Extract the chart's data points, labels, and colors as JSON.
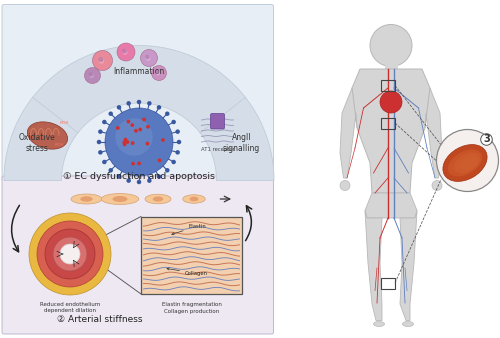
{
  "bg_color": "#ffffff",
  "top_panel_color": "#e8eef5",
  "bottom_panel_color": "#ede8f2",
  "arc_color": "#d5dde8",
  "arc_edge": "#c0ccd8",
  "section_labels": [
    "Oxidative\nstress",
    "Inflammation",
    "AngII\nsignalling"
  ],
  "label1": "① EC dysfunction and apoptosis",
  "label2": "② Arterial stiffness",
  "label3": "3",
  "sub_label1": "Reduced endothelium\ndependent dilation",
  "sub_label2": "Elastin fragmentation\nCollagen production",
  "elastin_label": "Elastin",
  "collagen_label": "Collagen",
  "at1_label": "AT1 receptor",
  "cell_colors": [
    "#e88a9a",
    "#e87aaa",
    "#c898c8",
    "#b888b8",
    "#cc90c0"
  ],
  "vessel_outer": "#e8b850",
  "vessel_mid": "#d86050",
  "vessel_inner": "#c04545",
  "vessel_lumen": "#f5f0f0",
  "zoom_bg": "#f2d0b0",
  "elastin_line": "#5070c0",
  "collagen_line": "#c06848",
  "body_color": "#d8d8d8",
  "artery_color": "#c83030",
  "vein_color": "#6080c0",
  "circle3_color": "#f5f0ee"
}
